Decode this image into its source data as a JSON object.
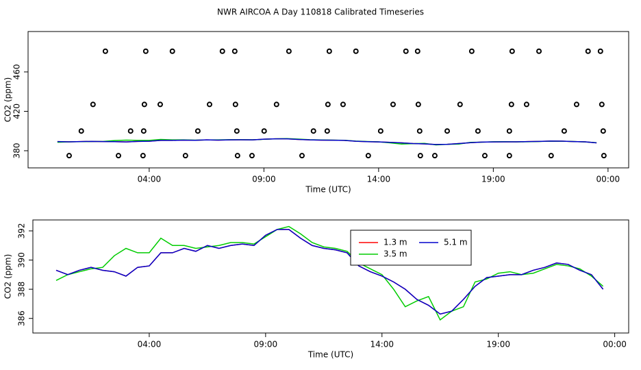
{
  "chart_data": [
    {
      "type": "line",
      "title": "NWR AIRCOA A  Day 110818  Calibrated Timeseries",
      "xlabel": "Time (UTC)",
      "ylabel": "CO2 (ppm)",
      "xlim": [
        -1.28,
        24.9
      ],
      "ylim": [
        362.6,
        501
      ],
      "xticks": [
        {
          "value": 4,
          "label": "04:00"
        },
        {
          "value": 9,
          "label": "09:00"
        },
        {
          "value": 14,
          "label": "14:00"
        },
        {
          "value": 19,
          "label": "19:00"
        },
        {
          "value": 24,
          "label": "00:00"
        }
      ],
      "yticks": [
        380,
        420,
        460
      ],
      "x": [
        0,
        0.5,
        1,
        1.5,
        2,
        2.5,
        3,
        3.5,
        4,
        4.5,
        5,
        5.5,
        6,
        6.5,
        7,
        7.5,
        8,
        8.5,
        9,
        9.5,
        10,
        10.5,
        11,
        11.5,
        12,
        12.5,
        13,
        13.5,
        14,
        14.5,
        15,
        15.5,
        16,
        16.5,
        17,
        17.5,
        18,
        18.5,
        19,
        19.5,
        20,
        20.5,
        21,
        21.5,
        22,
        22.5,
        23,
        23.5
      ],
      "series": [
        {
          "type": "scatter",
          "color": "#000000",
          "x": [
            2.09,
            3.85,
            5.01,
            7.19,
            7.73,
            10.09,
            11.85,
            13.01,
            15.19,
            15.7,
            18.06,
            19.82,
            20.99,
            23.13,
            23.67,
            1.55,
            3.79,
            4.48,
            6.63,
            7.76,
            9.55,
            11.79,
            12.45,
            14.63,
            15.73,
            17.55,
            19.79,
            20.45,
            22.63,
            23.73,
            1.04,
            3.19,
            3.76,
            6.12,
            7.82,
            9.01,
            11.16,
            11.76,
            14.09,
            15.79,
            16.99,
            18.33,
            19.7,
            22.09,
            23.79,
            0.51,
            2.66,
            3.73,
            5.58,
            7.85,
            8.48,
            10.66,
            13.55,
            15.82,
            16.45,
            18.63,
            19.7,
            21.52,
            23.82
          ],
          "values": [
            481,
            481,
            481,
            481,
            481,
            481,
            481,
            481,
            481,
            481,
            481,
            481,
            481,
            481,
            481,
            427,
            427,
            427,
            427,
            427,
            427,
            427,
            427,
            427,
            427,
            427,
            427,
            427,
            427,
            427,
            400,
            400,
            400,
            400,
            400,
            400,
            400,
            400,
            400,
            400,
            400,
            400,
            400,
            400,
            400,
            375,
            375,
            375,
            375,
            375,
            375,
            375,
            375,
            375,
            375,
            375,
            375,
            375,
            375
          ]
        },
        {
          "type": "line",
          "color": "#ff0000",
          "values": [
            389.3,
            389,
            389.3,
            389.5,
            389.3,
            389.2,
            388.9,
            389.5,
            389.6,
            390.5,
            390.5,
            390.8,
            390.6,
            391,
            390.8,
            391,
            391.1,
            391,
            391.7,
            392.1,
            392.1,
            391.5,
            391,
            390.8,
            390.7,
            390.5,
            389.6,
            389.2,
            388.9,
            388.5,
            388,
            387.3,
            386.9,
            386.3,
            386.5,
            387.3,
            388.2,
            388.8,
            388.9,
            389,
            389,
            389.3,
            389.5,
            389.8,
            389.7,
            389.3,
            389,
            388
          ]
        },
        {
          "type": "line",
          "color": "#00cc00",
          "values": [
            388.6,
            389,
            389.2,
            389.4,
            389.5,
            390.3,
            390.8,
            390.5,
            390.5,
            391.5,
            391,
            391,
            390.8,
            390.9,
            391,
            391.2,
            391.2,
            391.1,
            391.6,
            392.1,
            392.3,
            391.8,
            391.2,
            390.9,
            390.8,
            390.6,
            389.8,
            389.4,
            389,
            388,
            386.8,
            387.2,
            387.5,
            385.9,
            386.5,
            386.8,
            388.5,
            388.7,
            389.1,
            389.2,
            389,
            389.1,
            389.4,
            389.7,
            389.6,
            389.4,
            388.9,
            388.2
          ]
        },
        {
          "type": "line",
          "color": "#0000cc",
          "values": [
            389.3,
            389,
            389.3,
            389.5,
            389.3,
            389.2,
            388.9,
            389.5,
            389.6,
            390.5,
            390.5,
            390.8,
            390.6,
            391,
            390.8,
            391,
            391.1,
            391,
            391.7,
            392.1,
            392.1,
            391.5,
            391,
            390.8,
            390.7,
            390.5,
            389.6,
            389.2,
            388.9,
            388.5,
            388,
            387.3,
            386.9,
            386.3,
            386.5,
            387.3,
            388.2,
            388.8,
            388.9,
            389,
            389,
            389.3,
            389.5,
            389.8,
            389.7,
            389.3,
            389,
            388
          ]
        }
      ]
    },
    {
      "type": "line",
      "xlabel": "Time (UTC)",
      "ylabel": "CO2 (ppm)",
      "xlim": [
        -1.0,
        24.6
      ],
      "ylim": [
        385.0,
        392.75
      ],
      "legend": "top-center",
      "xticks": [
        {
          "value": 4,
          "label": "04:00"
        },
        {
          "value": 9,
          "label": "09:00"
        },
        {
          "value": 14,
          "label": "14:00"
        },
        {
          "value": 19,
          "label": "19:00"
        },
        {
          "value": 24,
          "label": "00:00"
        }
      ],
      "yticks": [
        386,
        388,
        390,
        392
      ],
      "x": [
        0,
        0.5,
        1,
        1.5,
        2,
        2.5,
        3,
        3.5,
        4,
        4.5,
        5,
        5.5,
        6,
        6.5,
        7,
        7.5,
        8,
        8.5,
        9,
        9.5,
        10,
        10.5,
        11,
        11.5,
        12,
        12.5,
        13,
        13.5,
        14,
        14.5,
        15,
        15.5,
        16,
        16.5,
        17,
        17.5,
        18,
        18.5,
        19,
        19.5,
        20,
        20.5,
        21,
        21.5,
        22,
        22.5,
        23,
        23.5
      ],
      "series": [
        {
          "name": "1.3 m",
          "type": "line",
          "color": "#ff0000",
          "values": [
            389.3,
            389,
            389.3,
            389.5,
            389.3,
            389.2,
            388.9,
            389.5,
            389.6,
            390.5,
            390.5,
            390.8,
            390.6,
            391,
            390.8,
            391,
            391.1,
            391,
            391.7,
            392.1,
            392.1,
            391.5,
            391,
            390.8,
            390.7,
            390.5,
            389.6,
            389.2,
            388.9,
            388.5,
            388,
            387.3,
            386.9,
            386.3,
            386.5,
            387.3,
            388.2,
            388.8,
            388.9,
            389,
            389,
            389.3,
            389.5,
            389.8,
            389.7,
            389.3,
            389,
            388
          ]
        },
        {
          "name": "3.5 m",
          "type": "line",
          "color": "#00cc00",
          "values": [
            388.6,
            389,
            389.2,
            389.4,
            389.5,
            390.3,
            390.8,
            390.5,
            390.5,
            391.5,
            391,
            391,
            390.8,
            390.9,
            391,
            391.2,
            391.2,
            391.1,
            391.6,
            392.1,
            392.3,
            391.8,
            391.2,
            390.9,
            390.8,
            390.6,
            389.8,
            389.4,
            389,
            388,
            386.8,
            387.2,
            387.5,
            385.9,
            386.5,
            386.8,
            388.5,
            388.7,
            389.1,
            389.2,
            389,
            389.1,
            389.4,
            389.7,
            389.6,
            389.4,
            388.9,
            388.2
          ]
        },
        {
          "name": "5.1 m",
          "type": "line",
          "color": "#0000cc",
          "values": [
            389.3,
            389,
            389.3,
            389.5,
            389.3,
            389.2,
            388.9,
            389.5,
            389.6,
            390.5,
            390.5,
            390.8,
            390.6,
            391,
            390.8,
            391,
            391.1,
            391,
            391.7,
            392.1,
            392.1,
            391.5,
            391,
            390.8,
            390.7,
            390.5,
            389.6,
            389.2,
            388.9,
            388.5,
            388,
            387.3,
            386.9,
            386.3,
            386.5,
            387.3,
            388.2,
            388.8,
            388.9,
            389,
            389,
            389.3,
            389.5,
            389.8,
            389.7,
            389.3,
            389,
            388
          ]
        }
      ]
    }
  ]
}
